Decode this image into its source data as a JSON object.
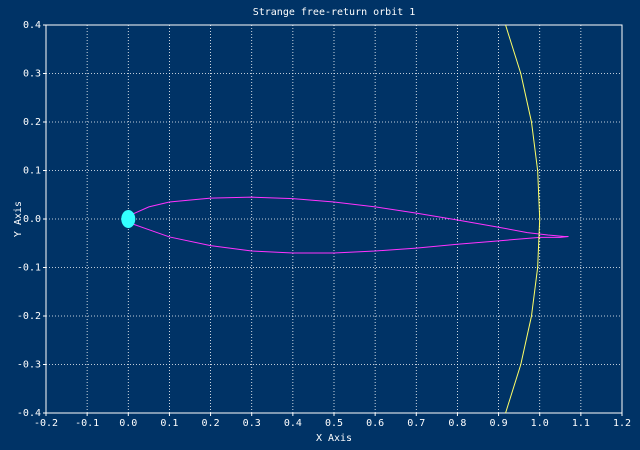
{
  "chart_data": {
    "type": "line",
    "title": "Strange free-return orbit 1",
    "x_label": "X Axis",
    "y_label": "Y Axis",
    "xlim": [
      -0.2,
      1.2
    ],
    "ylim": [
      -0.4,
      0.4
    ],
    "xticks": [
      -0.2,
      -0.1,
      {
        "value": 0,
        "label": "0.0"
      },
      0.1,
      0.2,
      0.3,
      0.4,
      0.5,
      0.6,
      0.7,
      0.8,
      0.9,
      {
        "value": 1,
        "label": "1.0"
      },
      1.1,
      1.2
    ],
    "yticks": [
      -0.4,
      -0.3,
      -0.2,
      -0.1,
      {
        "value": 0,
        "label": "0.0"
      },
      0.1,
      0.2,
      0.3,
      0.4
    ],
    "grid": true,
    "series": [
      {
        "color": "#ff33ff",
        "mode": "line",
        "x": [
          0.01,
          0.05,
          0.1,
          0.2,
          0.3,
          0.4,
          0.5,
          0.6,
          0.7,
          0.8,
          0.9,
          0.97,
          1.02,
          1.06,
          1.07,
          1.05,
          1.0,
          0.9,
          0.8,
          0.7,
          0.6,
          0.5,
          0.4,
          0.3,
          0.2,
          0.1,
          0.05,
          0.01
        ],
        "y": [
          0.01,
          0.025,
          0.035,
          0.043,
          0.045,
          0.042,
          0.035,
          0.025,
          0.012,
          -0.002,
          -0.017,
          -0.028,
          -0.033,
          -0.036,
          -0.036,
          -0.038,
          -0.038,
          -0.045,
          -0.052,
          -0.06,
          -0.066,
          -0.07,
          -0.07,
          -0.066,
          -0.055,
          -0.037,
          -0.022,
          -0.01
        ]
      },
      {
        "color": "#ffff66",
        "mode": "line",
        "x": [
          0.917,
          0.954,
          0.98,
          0.995,
          1.0,
          0.995,
          0.98,
          0.954,
          0.917
        ],
        "y": [
          -0.4,
          -0.3,
          -0.2,
          -0.1,
          0,
          0.1,
          0.2,
          0.3,
          0.4
        ]
      },
      {
        "color": "#33ffff",
        "mode": "marker",
        "x": [
          0
        ],
        "y": [
          0
        ]
      }
    ]
  }
}
